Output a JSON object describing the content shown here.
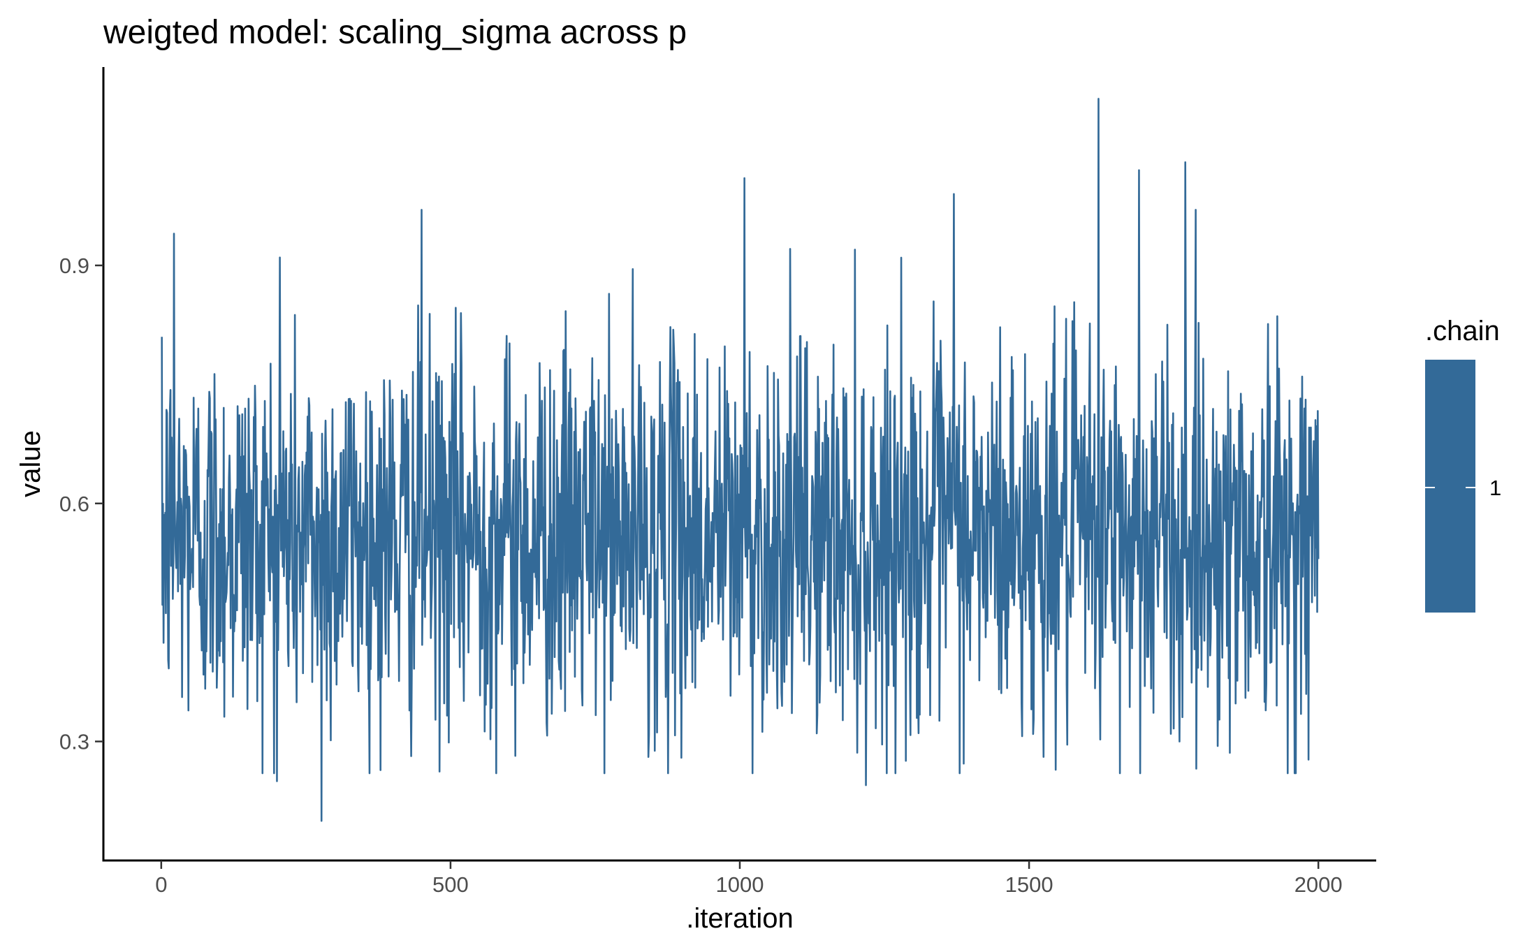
{
  "chart_data": {
    "type": "line",
    "title": "weigted model: scaling_sigma across p",
    "xlabel": ".iteration",
    "ylabel": "value",
    "xlim": [
      -100,
      2100
    ],
    "ylim": [
      0.15,
      1.15
    ],
    "x_ticks": [
      0,
      500,
      1000,
      1500,
      2000
    ],
    "x_tick_labels": [
      "0",
      "500",
      "1000",
      "1500",
      "2000"
    ],
    "y_ticks": [
      0.3,
      0.6,
      0.9
    ],
    "y_tick_labels": [
      "0.3",
      "0.6",
      "0.9"
    ],
    "grid": false,
    "legend": {
      "title": ".chain",
      "position": "right",
      "entries": [
        "1"
      ]
    },
    "series": [
      {
        "name": "1",
        "color": "#336a98",
        "n_iterations": 2000,
        "mean": 0.56,
        "sd": 0.12,
        "notable_points": [
          {
            "x": 1,
            "y": 0.81
          },
          {
            "x": 22,
            "y": 0.94
          },
          {
            "x": 205,
            "y": 0.91
          },
          {
            "x": 200,
            "y": 0.25
          },
          {
            "x": 277,
            "y": 0.2
          },
          {
            "x": 450,
            "y": 0.97
          },
          {
            "x": 1008,
            "y": 1.01
          },
          {
            "x": 1218,
            "y": 0.245
          },
          {
            "x": 1370,
            "y": 0.99
          },
          {
            "x": 1620,
            "y": 1.11
          },
          {
            "x": 1690,
            "y": 1.02
          },
          {
            "x": 1770,
            "y": 1.03
          },
          {
            "x": 1760,
            "y": 0.3
          },
          {
            "x": 2000,
            "y": 0.53
          }
        ]
      }
    ]
  }
}
